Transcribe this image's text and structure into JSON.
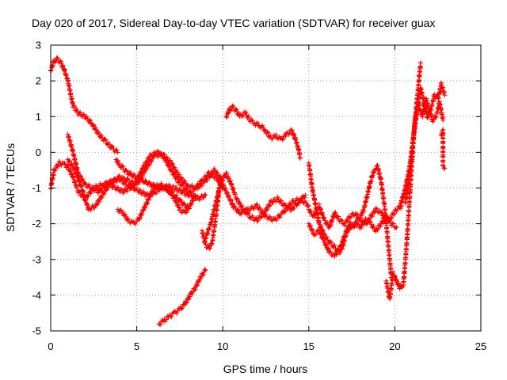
{
  "chart_data": {
    "type": "scatter",
    "title": "Day 020 of 2017, Sidereal Day-to-day VTEC variation (SDTVAR) for receiver guax",
    "xlabel": "GPS time / hours",
    "ylabel": "SDTVAR / TECUs",
    "xlim": [
      0,
      25
    ],
    "ylim": [
      -5,
      3
    ],
    "xticks": [
      "0",
      "5",
      "10",
      "15",
      "20",
      "25"
    ],
    "yticks": [
      "-5",
      "-4",
      "-3",
      "-2",
      "-1",
      "0",
      "1",
      "2",
      "3"
    ],
    "grid": true,
    "marker": "plus",
    "color": "#ff0000",
    "series": [
      {
        "x": [
          0.0,
          0.2,
          0.4,
          0.6,
          0.8,
          1.0,
          1.3,
          1.6,
          2.0,
          2.4,
          2.8,
          3.2,
          3.6,
          3.9
        ],
        "y": [
          2.3,
          2.55,
          2.6,
          2.5,
          2.3,
          2.0,
          1.3,
          1.1,
          1.0,
          0.8,
          0.5,
          0.3,
          0.1,
          0.0
        ]
      },
      {
        "x": [
          0.0,
          0.2,
          0.5,
          0.8,
          1.0,
          1.3,
          1.6,
          2.0,
          2.5,
          3.0,
          3.5,
          4.0,
          4.5,
          5.0,
          5.5,
          6.0,
          6.5,
          7.0,
          7.5,
          8.0,
          8.5,
          9.0,
          9.5,
          10.0
        ],
        "y": [
          -1.0,
          -0.5,
          -0.3,
          -0.35,
          -0.4,
          -0.7,
          -1.1,
          -1.3,
          -1.0,
          -0.9,
          -0.85,
          -0.7,
          -0.8,
          -0.9,
          -0.5,
          -0.1,
          -0.05,
          -0.3,
          -0.7,
          -0.95,
          -1.0,
          -0.8,
          -0.5,
          -0.8
        ]
      },
      {
        "x": [
          1.0,
          1.3,
          1.6,
          2.0,
          2.4,
          2.8,
          3.2,
          3.6,
          4.0,
          4.4,
          4.8,
          5.2,
          5.6,
          6.0,
          6.4,
          6.8,
          7.2,
          7.6,
          8.0,
          8.4,
          8.8,
          9.2,
          9.6,
          10.0
        ],
        "y": [
          0.5,
          0.0,
          -0.6,
          -0.9,
          -1.0,
          -1.1,
          -0.9,
          -0.8,
          -0.75,
          -0.9,
          -1.0,
          -1.1,
          -1.2,
          -1.15,
          -1.0,
          -0.95,
          -1.0,
          -1.1,
          -1.2,
          -1.0,
          -0.8,
          -0.6,
          -0.7,
          -1.0
        ]
      },
      {
        "x": [
          1.0,
          1.4,
          1.8,
          2.2,
          2.6,
          3.0,
          3.4,
          3.8,
          4.2,
          4.6,
          5.0,
          5.4,
          5.8,
          6.2,
          6.6,
          7.0,
          7.4,
          7.8,
          8.2,
          8.6,
          9.0
        ],
        "y": [
          -0.2,
          -0.5,
          -1.0,
          -1.6,
          -1.5,
          -1.2,
          -0.9,
          -1.0,
          -1.1,
          -1.0,
          -0.8,
          -0.4,
          -0.1,
          0.0,
          -0.15,
          -0.5,
          -0.8,
          -1.0,
          -1.2,
          -1.3,
          -1.2
        ]
      },
      {
        "x": [
          3.8,
          4.0,
          4.2,
          4.4,
          4.6,
          4.8,
          5.0,
          5.2,
          5.4,
          5.6,
          5.8,
          6.0,
          6.2,
          6.4,
          6.6,
          6.8,
          7.0,
          7.2,
          7.4,
          7.6,
          7.8,
          8.0
        ],
        "y": [
          -0.2,
          -0.35,
          -0.45,
          -0.55,
          -0.6,
          -0.65,
          -0.7,
          -0.75,
          -0.8,
          -0.85,
          -0.9,
          -0.95,
          -0.95,
          -1.0,
          -1.0,
          -1.05,
          -1.1,
          -1.2,
          -1.3,
          -1.4,
          -1.5,
          -1.55
        ]
      },
      {
        "x": [
          3.9,
          4.2,
          4.5,
          4.8,
          5.1,
          5.4,
          5.7,
          6.0,
          6.3,
          6.6,
          6.9,
          7.2,
          7.5,
          7.8,
          8.1,
          8.4
        ],
        "y": [
          -1.6,
          -1.7,
          -1.9,
          -2.0,
          -1.9,
          -1.6,
          -1.3,
          -1.0,
          -0.9,
          -0.95,
          -1.1,
          -1.3,
          -1.6,
          -1.7,
          -1.5,
          -1.2
        ]
      },
      {
        "x": [
          6.3,
          6.6,
          6.9,
          7.2,
          7.5,
          7.8,
          8.1,
          8.4,
          8.7,
          9.0
        ],
        "y": [
          -4.8,
          -4.7,
          -4.6,
          -4.5,
          -4.4,
          -4.25,
          -4.0,
          -3.8,
          -3.5,
          -3.3
        ]
      },
      {
        "x": [
          8.8,
          9.0,
          9.2,
          9.4,
          9.6,
          9.8,
          10.0,
          10.3,
          10.6,
          11.0,
          11.5,
          12.0,
          12.5,
          13.0,
          13.5,
          14.0,
          14.5,
          15.0
        ],
        "y": [
          -2.2,
          -2.6,
          -2.7,
          -2.5,
          -1.8,
          -1.0,
          -0.9,
          -1.2,
          -1.5,
          -1.7,
          -1.6,
          -1.5,
          -1.8,
          -1.9,
          -1.7,
          -1.4,
          -1.3,
          -1.5
        ]
      },
      {
        "x": [
          9.0,
          9.3,
          9.6,
          9.9,
          10.2,
          10.5,
          10.8,
          11.2,
          11.6,
          12.0,
          12.4,
          12.8,
          13.2,
          13.6,
          14.0,
          14.4,
          14.8
        ],
        "y": [
          -2.4,
          -2.0,
          -1.4,
          -0.8,
          -0.6,
          -0.9,
          -1.3,
          -1.6,
          -1.8,
          -1.9,
          -1.7,
          -1.4,
          -1.3,
          -1.5,
          -1.6,
          -1.4,
          -1.2
        ]
      },
      {
        "x": [
          10.2,
          10.4,
          10.6,
          10.8,
          11.0,
          11.3,
          11.6,
          11.9,
          12.2,
          12.5,
          12.8,
          13.1,
          13.4,
          13.7,
          14.0,
          14.2,
          14.4,
          14.5
        ],
        "y": [
          1.0,
          1.2,
          1.25,
          1.15,
          1.0,
          1.1,
          0.9,
          0.8,
          0.75,
          0.6,
          0.4,
          0.45,
          0.35,
          0.5,
          0.6,
          0.4,
          0.1,
          -0.15
        ]
      },
      {
        "x": [
          15.0,
          15.2,
          15.4,
          15.6,
          15.8,
          16.0,
          16.2,
          16.4,
          16.6,
          16.8,
          17.0,
          17.2,
          17.4,
          17.6,
          17.8,
          18.0,
          18.2,
          18.4,
          18.6,
          18.8,
          19.0,
          19.2,
          19.4,
          19.6,
          19.8
        ],
        "y": [
          -0.3,
          -1.0,
          -1.5,
          -2.0,
          -2.2,
          -2.4,
          -2.5,
          -2.6,
          -2.7,
          -2.8,
          -2.6,
          -2.2,
          -2.0,
          -2.1,
          -1.9,
          -1.8,
          -1.6,
          -1.2,
          -0.8,
          -0.5,
          -0.4,
          -0.8,
          -1.5,
          -2.5,
          -3.5
        ]
      },
      {
        "x": [
          15.0,
          15.3,
          15.6,
          15.9,
          16.2,
          16.5,
          16.8,
          17.1,
          17.4,
          17.7,
          18.0,
          18.3,
          18.6,
          18.9,
          19.2,
          19.5,
          19.8,
          20.1,
          20.4
        ],
        "y": [
          -1.6,
          -1.8,
          -1.5,
          -1.9,
          -2.1,
          -1.7,
          -1.9,
          -2.0,
          -1.8,
          -1.7,
          -1.9,
          -2.0,
          -1.8,
          -1.6,
          -1.7,
          -1.9,
          -1.8,
          -1.6,
          -1.5
        ]
      },
      {
        "x": [
          15.0,
          15.3,
          15.6,
          15.9,
          16.2,
          16.5,
          16.8,
          17.1,
          17.4,
          17.7,
          18.0,
          18.3,
          18.6,
          18.9,
          19.2,
          19.5,
          19.8,
          20.1
        ],
        "y": [
          -2.0,
          -2.3,
          -2.2,
          -2.5,
          -2.8,
          -2.9,
          -2.7,
          -2.3,
          -2.1,
          -2.0,
          -2.1,
          -1.9,
          -2.0,
          -2.2,
          -2.0,
          -1.8,
          -2.0,
          -2.1
        ]
      },
      {
        "x": [
          19.5,
          19.7,
          19.9,
          20.1,
          20.3,
          20.5,
          20.7,
          20.9,
          21.1,
          21.3,
          21.5
        ],
        "y": [
          -3.6,
          -4.1,
          -3.4,
          -3.6,
          -3.8,
          -3.7,
          -2.5,
          -1.0,
          0.5,
          1.5,
          2.5
        ]
      },
      {
        "x": [
          20.3,
          20.5,
          20.7,
          20.9,
          21.1,
          21.3,
          21.5,
          21.7,
          21.9,
          22.1,
          22.3,
          22.5,
          22.7,
          22.9
        ],
        "y": [
          -1.5,
          -1.2,
          -0.8,
          -0.3,
          0.5,
          1.2,
          1.8,
          1.4,
          1.0,
          1.2,
          1.6,
          1.5,
          1.9,
          1.6
        ]
      },
      {
        "x": [
          20.6,
          20.8,
          21.0,
          21.2,
          21.4,
          21.6,
          21.8,
          22.0,
          22.2,
          22.4,
          22.6,
          22.8
        ],
        "y": [
          -1.4,
          -0.9,
          0.0,
          1.0,
          1.3,
          1.0,
          1.5,
          1.2,
          0.9,
          1.0,
          1.4,
          0.9
        ]
      },
      {
        "x": [
          22.7,
          22.8,
          22.8,
          22.9
        ],
        "y": [
          0.5,
          0.6,
          -0.4,
          -0.45
        ]
      }
    ]
  }
}
